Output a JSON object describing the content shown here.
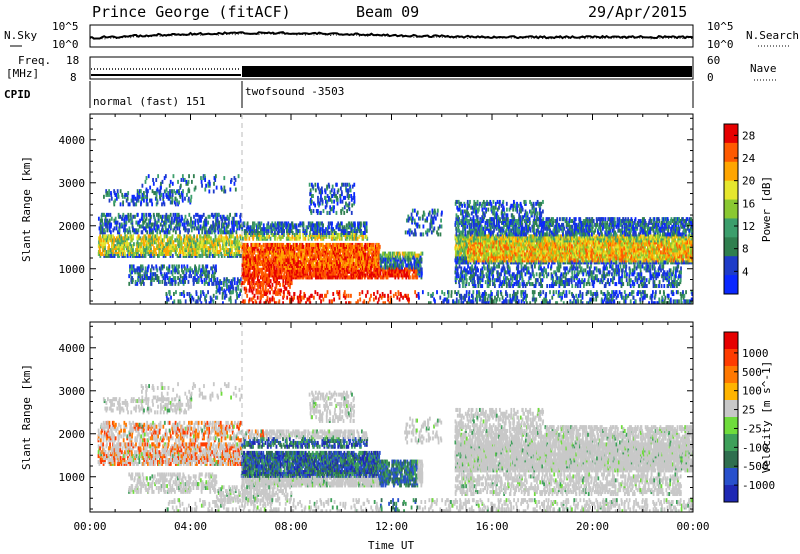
{
  "header": {
    "station": "Prince George (fitACF)",
    "beam": "Beam 09",
    "date": "29/Apr/2015"
  },
  "strips": {
    "nsky": {
      "label": "N.Sky",
      "ticks": [
        "10^5",
        "10^0"
      ]
    },
    "nsearch": {
      "label": "N.Search",
      "ticks": [
        "10^5",
        "10^0"
      ]
    },
    "freq": {
      "label_line1": "Freq.",
      "label_line2": "[MHz]",
      "ticks": [
        "18",
        "8"
      ]
    },
    "nave": {
      "label": "Nave",
      "ticks": [
        "60",
        "0"
      ]
    },
    "cpid": {
      "label": "CPID",
      "segments": [
        {
          "start_hour": 0,
          "end_hour": 6,
          "name": "normal (fast) 151"
        },
        {
          "start_hour": 6,
          "end_hour": 24,
          "name": "twofsound -3503"
        }
      ]
    }
  },
  "colors": {
    "power": [
      "#0a28ff",
      "#1e3cc8",
      "#2f7f4f",
      "#3c9e6c",
      "#8ac832",
      "#e6e62d",
      "#ffa500",
      "#ff5a00",
      "#e60000"
    ],
    "velocity": [
      "#1e28b4",
      "#2850cc",
      "#2f6f4f",
      "#3ea05a",
      "#6fdc3c",
      "#c8c8c8",
      "#ffb400",
      "#ff7800",
      "#ff3c00",
      "#e60000"
    ]
  },
  "chart_data": [
    {
      "type": "heatmap",
      "xlabel": "",
      "ylabel": "Slant Range [km]",
      "xlim": [
        0,
        24
      ],
      "ylim": [
        180,
        4600
      ],
      "xticks": [
        "00:00",
        "04:00",
        "08:00",
        "12:00",
        "16:00",
        "20:00",
        "00:00"
      ],
      "yticks": [
        1000,
        2000,
        3000,
        4000
      ],
      "colorbar": {
        "label": "Power [dB]",
        "ticks": [
          4,
          8,
          12,
          16,
          20,
          24,
          28
        ],
        "range": [
          0,
          30
        ]
      }
    },
    {
      "type": "heatmap",
      "xlabel": "Time UT",
      "ylabel": "Slant Range [km]",
      "xlim": [
        0,
        24
      ],
      "ylim": [
        180,
        4600
      ],
      "xticks": [
        "00:00",
        "04:00",
        "08:00",
        "12:00",
        "16:00",
        "20:00",
        "00:00"
      ],
      "yticks": [
        1000,
        2000,
        3000,
        4000
      ],
      "colorbar": {
        "label": "Velocity [m s^-1]",
        "ticks": [
          "1000",
          "500",
          "100",
          "25",
          "-25",
          "-100",
          "-500",
          "-1000"
        ]
      }
    }
  ]
}
